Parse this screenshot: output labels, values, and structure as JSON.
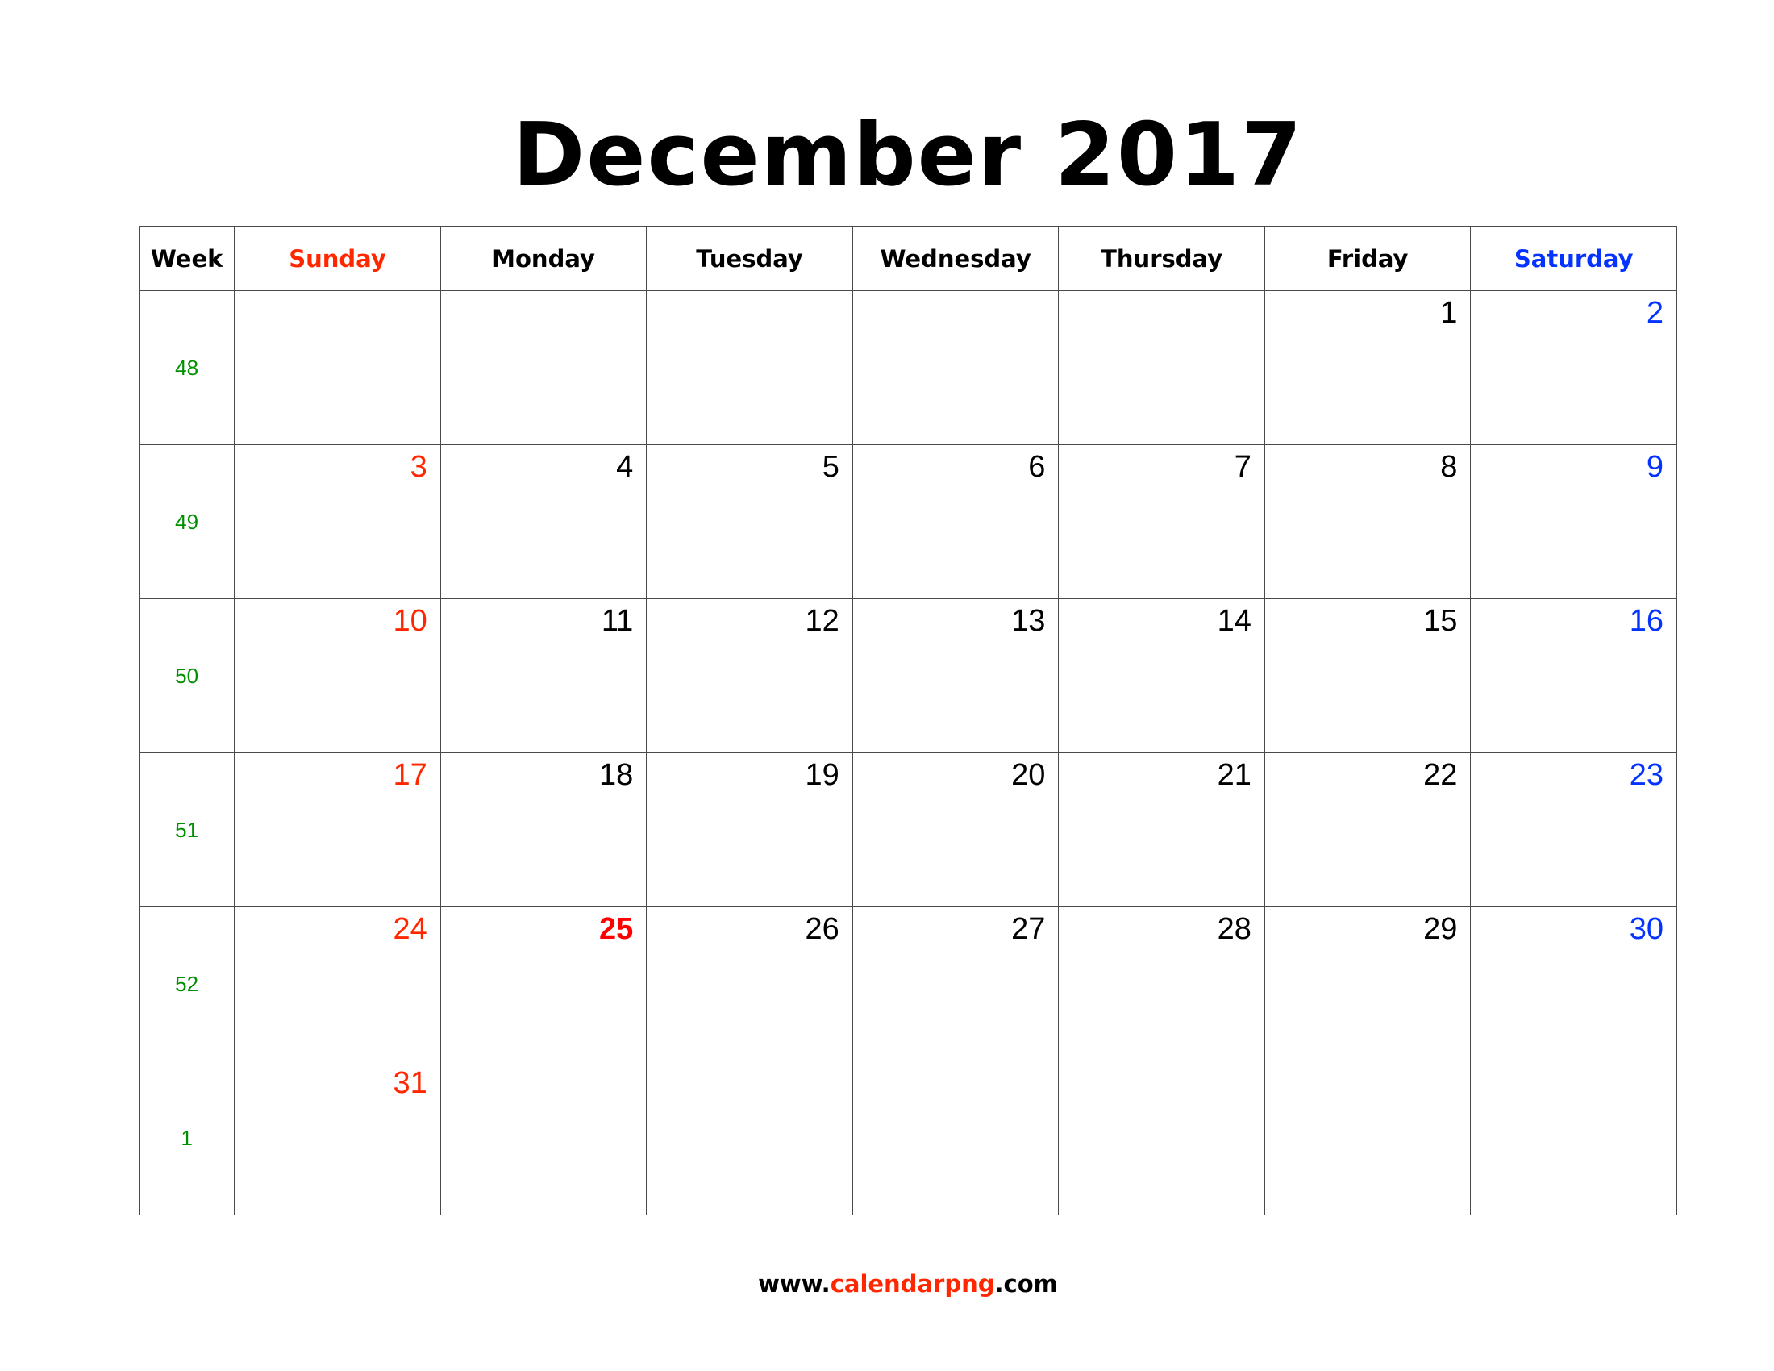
{
  "title": "December 2017",
  "headers": {
    "week": "Week",
    "sunday": "Sunday",
    "monday": "Monday",
    "tuesday": "Tuesday",
    "wednesday": "Wednesday",
    "thursday": "Thursday",
    "friday": "Friday",
    "saturday": "Saturday"
  },
  "weeks": [
    {
      "num": "48",
      "days": [
        "",
        "",
        "",
        "",
        "",
        "1",
        "2"
      ]
    },
    {
      "num": "49",
      "days": [
        "3",
        "4",
        "5",
        "6",
        "7",
        "8",
        "9"
      ]
    },
    {
      "num": "50",
      "days": [
        "10",
        "11",
        "12",
        "13",
        "14",
        "15",
        "16"
      ]
    },
    {
      "num": "51",
      "days": [
        "17",
        "18",
        "19",
        "20",
        "21",
        "22",
        "23"
      ]
    },
    {
      "num": "52",
      "days": [
        "24",
        "25",
        "26",
        "27",
        "28",
        "29",
        "30"
      ]
    },
    {
      "num": "1",
      "days": [
        "31",
        "",
        "",
        "",
        "",
        "",
        ""
      ]
    }
  ],
  "colors": {
    "sunday": "#ff2600",
    "saturday": "#0433ff",
    "week_number": "#008f00",
    "holiday": "#ff0000"
  },
  "footer": {
    "prefix": "www.",
    "middle": "calendarpng",
    "suffix": ".com"
  }
}
